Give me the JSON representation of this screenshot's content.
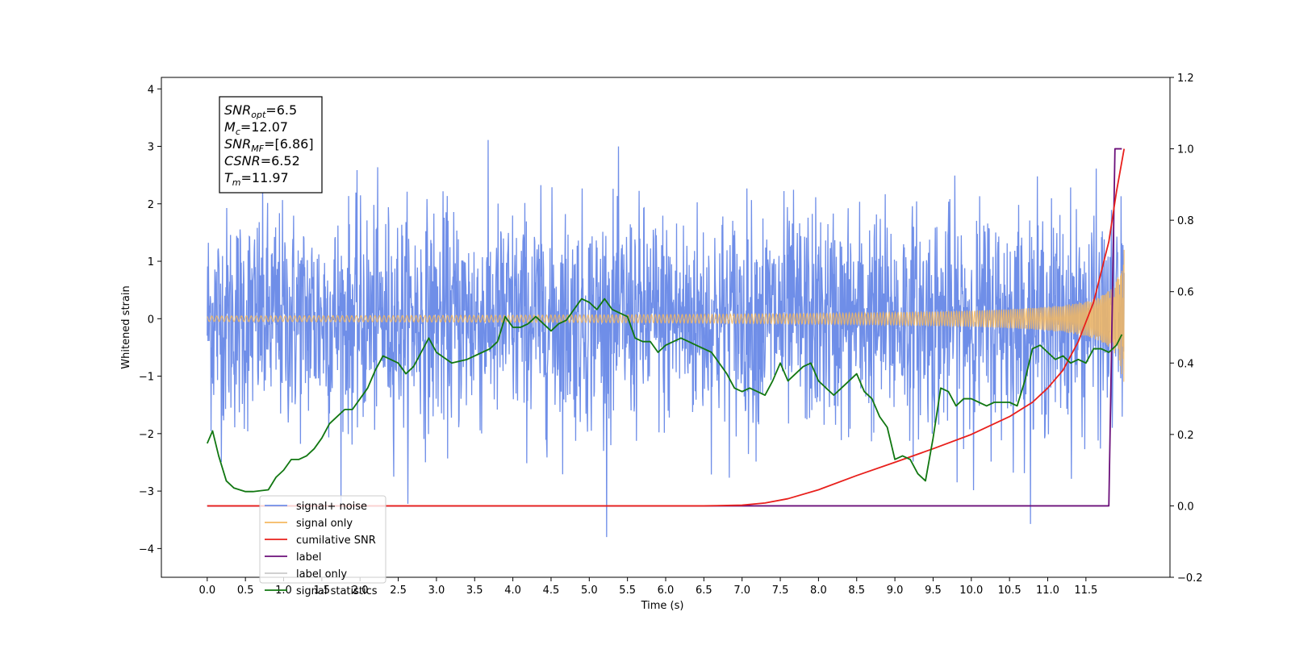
{
  "chart_data": {
    "type": "line",
    "title": "",
    "xlabel": "Time (s)",
    "ylabel": "Whitened strain",
    "xlim": [
      -0.6,
      12.6
    ],
    "ylim": [
      -4.5,
      4.2
    ],
    "y2lim": [
      -0.2,
      1.2
    ],
    "grid": false,
    "legend_position": "lower-left",
    "x_ticks": [
      "0.0",
      "0.5",
      "1.0",
      "1.5",
      "2.0",
      "2.5",
      "3.0",
      "3.5",
      "4.0",
      "4.5",
      "5.0",
      "5.5",
      "6.0",
      "6.5",
      "7.0",
      "7.5",
      "8.0",
      "8.5",
      "9.0",
      "9.5",
      "10.0",
      "10.5",
      "11.0",
      "11.5"
    ],
    "y_ticks": [
      "4",
      "3",
      "2",
      "1",
      "0",
      "−1",
      "−2",
      "−3",
      "−4"
    ],
    "y2_ticks": [
      "1.2",
      "1.0",
      "0.8",
      "0.6",
      "0.4",
      "0.2",
      "0.0",
      "−0.2"
    ],
    "annotation": {
      "lines": [
        {
          "var": "SNR",
          "sub": "opt",
          "value": "=6.5"
        },
        {
          "var": "M",
          "sub": "c",
          "value": "=12.07"
        },
        {
          "var": "SNR",
          "sub": "MF",
          "value": "=[6.86]"
        },
        {
          "var": "CSNR",
          "sub": "",
          "value": "=6.52"
        },
        {
          "var": "T",
          "sub": "m",
          "value": "=11.97"
        }
      ]
    },
    "series": [
      {
        "name": "signal+ noise",
        "color": "#6f8ee8",
        "axis": "left",
        "kind": "noise",
        "x_range": [
          0.0,
          12.0
        ],
        "std": 0.95,
        "max_abs": 3.8
      },
      {
        "name": "signal only",
        "color": "#f4b860",
        "axis": "left",
        "kind": "chirp",
        "x_range": [
          0.0,
          12.0
        ],
        "amplitude_end": 1.3
      },
      {
        "name": "cumilative SNR",
        "color": "#e8201c",
        "axis": "right",
        "x": [
          0.0,
          6.5,
          7.0,
          7.3,
          7.6,
          8.0,
          8.5,
          9.0,
          9.5,
          10.0,
          10.5,
          10.8,
          11.0,
          11.2,
          11.4,
          11.6,
          11.8,
          11.9,
          12.0
        ],
        "y": [
          0.0,
          0.0,
          0.002,
          0.008,
          0.02,
          0.045,
          0.085,
          0.122,
          0.16,
          0.2,
          0.25,
          0.29,
          0.33,
          0.38,
          0.46,
          0.57,
          0.74,
          0.88,
          1.0
        ]
      },
      {
        "name": "label",
        "color": "#6b0f7a",
        "axis": "right",
        "x": [
          0.0,
          11.8,
          11.88,
          11.97
        ],
        "y": [
          0.0,
          0.0,
          1.0,
          1.0
        ]
      },
      {
        "name": "label only",
        "color": "#c9c9c9",
        "axis": "right",
        "x": [],
        "y": []
      },
      {
        "name": "signal statistics",
        "color": "#117711",
        "axis": "right",
        "x": [
          0.0,
          0.07,
          0.15,
          0.25,
          0.35,
          0.5,
          0.6,
          0.8,
          0.9,
          1.0,
          1.1,
          1.2,
          1.3,
          1.4,
          1.5,
          1.6,
          1.7,
          1.8,
          1.9,
          2.0,
          2.1,
          2.2,
          2.3,
          2.4,
          2.5,
          2.6,
          2.7,
          2.8,
          2.9,
          3.0,
          3.2,
          3.4,
          3.6,
          3.7,
          3.8,
          3.9,
          4.0,
          4.1,
          4.2,
          4.3,
          4.4,
          4.5,
          4.6,
          4.7,
          4.8,
          4.9,
          5.0,
          5.1,
          5.2,
          5.3,
          5.4,
          5.5,
          5.6,
          5.7,
          5.8,
          5.9,
          6.0,
          6.1,
          6.2,
          6.3,
          6.4,
          6.5,
          6.6,
          6.7,
          6.8,
          6.9,
          7.0,
          7.1,
          7.2,
          7.3,
          7.4,
          7.5,
          7.6,
          7.7,
          7.8,
          7.9,
          8.0,
          8.1,
          8.2,
          8.3,
          8.4,
          8.5,
          8.6,
          8.7,
          8.8,
          8.9,
          9.0,
          9.1,
          9.2,
          9.3,
          9.4,
          9.5,
          9.6,
          9.7,
          9.8,
          9.9,
          10.0,
          10.1,
          10.2,
          10.3,
          10.4,
          10.5,
          10.6,
          10.7,
          10.8,
          10.9,
          11.0,
          11.1,
          11.2,
          11.3,
          11.4,
          11.5,
          11.6,
          11.7,
          11.8,
          11.9,
          11.97
        ],
        "y": [
          0.175,
          0.21,
          0.14,
          0.07,
          0.05,
          0.04,
          0.04,
          0.045,
          0.08,
          0.1,
          0.13,
          0.13,
          0.14,
          0.16,
          0.19,
          0.23,
          0.25,
          0.27,
          0.27,
          0.3,
          0.33,
          0.38,
          0.42,
          0.41,
          0.4,
          0.37,
          0.39,
          0.43,
          0.47,
          0.43,
          0.4,
          0.41,
          0.43,
          0.44,
          0.46,
          0.53,
          0.5,
          0.5,
          0.51,
          0.53,
          0.51,
          0.49,
          0.51,
          0.52,
          0.55,
          0.58,
          0.57,
          0.55,
          0.58,
          0.55,
          0.54,
          0.53,
          0.47,
          0.46,
          0.46,
          0.43,
          0.45,
          0.46,
          0.47,
          0.46,
          0.45,
          0.44,
          0.43,
          0.4,
          0.37,
          0.33,
          0.32,
          0.33,
          0.32,
          0.31,
          0.35,
          0.4,
          0.35,
          0.37,
          0.39,
          0.4,
          0.35,
          0.33,
          0.31,
          0.33,
          0.35,
          0.37,
          0.32,
          0.3,
          0.25,
          0.22,
          0.13,
          0.14,
          0.13,
          0.09,
          0.07,
          0.19,
          0.33,
          0.32,
          0.28,
          0.3,
          0.3,
          0.29,
          0.28,
          0.29,
          0.29,
          0.29,
          0.28,
          0.35,
          0.44,
          0.45,
          0.43,
          0.41,
          0.42,
          0.4,
          0.41,
          0.4,
          0.44,
          0.44,
          0.43,
          0.45,
          0.48
        ]
      }
    ]
  }
}
